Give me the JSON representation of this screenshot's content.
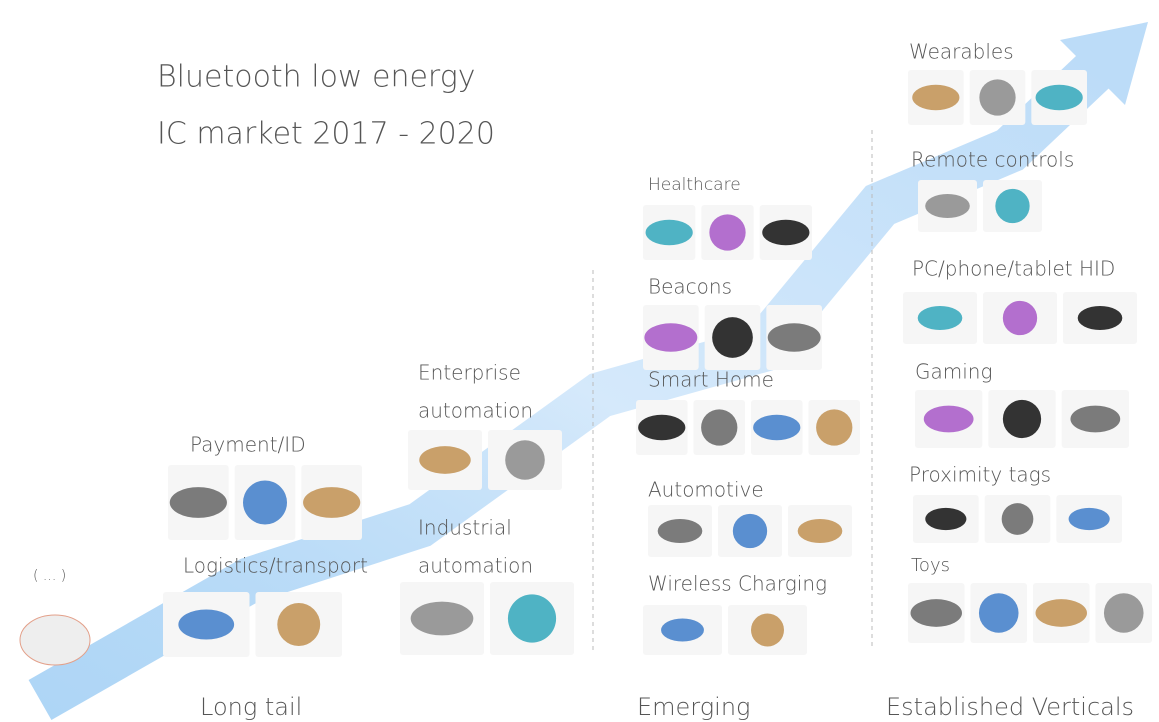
{
  "title": [
    "Bluetooth low energy",
    "IC market 2017 - 2020"
  ],
  "sections": [
    "Long tail",
    "Emerging",
    "Established Verticals"
  ],
  "other": "( ... )",
  "categories": [
    {
      "label": [
        "Payment/ID"
      ]
    },
    {
      "label": [
        "Logistics/transport"
      ]
    },
    {
      "label": [
        "Enterprise",
        "automation"
      ]
    },
    {
      "label": [
        "Industrial",
        "automation"
      ]
    },
    {
      "label": [
        "Healthcare"
      ]
    },
    {
      "label": [
        "Beacons"
      ]
    },
    {
      "label": [
        "Smart Home"
      ]
    },
    {
      "label": [
        "Automotive"
      ]
    },
    {
      "label": [
        "Wireless Charging"
      ]
    },
    {
      "label": [
        "Wearables"
      ]
    },
    {
      "label": [
        "Remote controls"
      ]
    },
    {
      "label": [
        "PC/phone/tablet HID"
      ]
    },
    {
      "label": [
        "Gaming"
      ]
    },
    {
      "label": [
        "Proximity tags"
      ]
    },
    {
      "label": [
        "Toys"
      ]
    }
  ]
}
